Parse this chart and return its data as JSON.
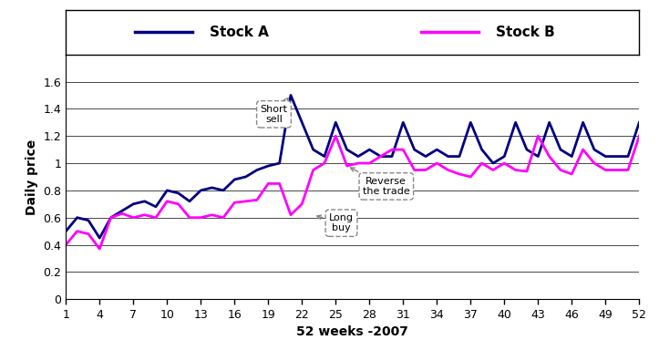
{
  "stock_a": [
    0.5,
    0.6,
    0.58,
    0.45,
    0.6,
    0.65,
    0.7,
    0.72,
    0.68,
    0.8,
    0.78,
    0.72,
    0.8,
    0.82,
    0.8,
    0.88,
    0.9,
    0.95,
    0.98,
    1.0,
    1.5,
    1.3,
    1.1,
    1.05,
    1.3,
    1.1,
    1.05,
    1.1,
    1.05,
    1.05,
    1.3,
    1.1,
    1.05,
    1.1,
    1.05,
    1.05,
    1.3,
    1.1,
    1.0,
    1.05,
    1.3,
    1.1,
    1.05,
    1.3,
    1.1,
    1.05,
    1.3,
    1.1,
    1.05,
    1.05,
    1.05,
    1.3
  ],
  "stock_b": [
    0.4,
    0.5,
    0.48,
    0.37,
    0.6,
    0.63,
    0.6,
    0.62,
    0.6,
    0.72,
    0.7,
    0.6,
    0.6,
    0.62,
    0.6,
    0.71,
    0.72,
    0.73,
    0.85,
    0.85,
    0.62,
    0.7,
    0.95,
    1.0,
    1.2,
    0.98,
    1.0,
    1.0,
    1.05,
    1.1,
    1.1,
    0.95,
    0.95,
    1.0,
    0.95,
    0.92,
    0.9,
    1.0,
    0.95,
    1.0,
    0.95,
    0.94,
    1.2,
    1.05,
    0.95,
    0.92,
    1.1,
    1.0,
    0.95,
    0.95,
    0.95,
    1.2
  ],
  "weeks": [
    1,
    2,
    3,
    4,
    5,
    6,
    7,
    8,
    9,
    10,
    11,
    12,
    13,
    14,
    15,
    16,
    17,
    18,
    19,
    20,
    21,
    22,
    23,
    24,
    25,
    26,
    27,
    28,
    29,
    30,
    31,
    32,
    33,
    34,
    35,
    36,
    37,
    38,
    39,
    40,
    41,
    42,
    43,
    44,
    45,
    46,
    47,
    48,
    49,
    50,
    51,
    52
  ],
  "color_a": "#000080",
  "color_b": "#FF00FF",
  "xlabel": "52 weeks -2007",
  "ylabel": "Daily price",
  "ylim": [
    0,
    1.8
  ],
  "yticks": [
    0,
    0.2,
    0.4,
    0.6,
    0.8,
    1.0,
    1.2,
    1.4,
    1.6
  ],
  "xticks": [
    1,
    4,
    7,
    10,
    13,
    16,
    19,
    22,
    25,
    28,
    31,
    34,
    37,
    40,
    43,
    46,
    49,
    52
  ],
  "linewidth": 2.0
}
